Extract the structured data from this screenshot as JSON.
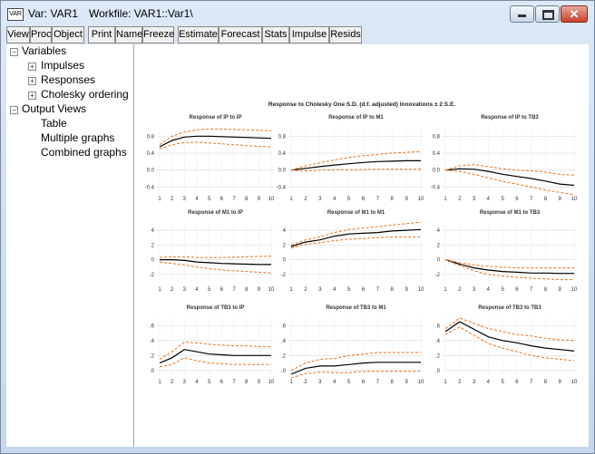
{
  "window": {
    "icon": "VAR",
    "name": "Var: VAR1",
    "workfile": "Workfile: VAR1::Var1\\"
  },
  "toolbar": [
    "View",
    "Proc",
    "Object",
    "Print",
    "Name",
    "Freeze",
    "Estimate",
    "Forecast",
    "Stats",
    "Impulse",
    "Resids"
  ],
  "tree": [
    {
      "label": "Variables",
      "children": [
        "Impulses",
        "Responses",
        "Cholesky ordering"
      ]
    },
    {
      "label": "Output Views",
      "children": [
        "Table",
        "Multiple graphs",
        "Combined graphs"
      ]
    }
  ],
  "figure_title": "Response to Cholesky One S.D. (d.f. adjusted) Innovations ± 2 S.E.",
  "chart_data": [
    {
      "type": "line",
      "title": "Response of IP to IP",
      "categories": [
        1,
        2,
        3,
        4,
        5,
        6,
        7,
        8,
        9,
        10
      ],
      "ylim": [
        -0.5,
        1.0
      ],
      "yticks": [
        -0.4,
        {
          "value": 0,
          "label": "0.0"
        },
        0.4,
        0.8
      ],
      "grid": true,
      "series": [
        {
          "color": "#000000",
          "line_style": "solid",
          "values": [
            0.55,
            0.7,
            0.78,
            0.8,
            0.8,
            0.79,
            0.78,
            0.77,
            0.76,
            0.75
          ]
        },
        {
          "color": "#e8731e",
          "line_style": "dashed",
          "values": [
            0.6,
            0.8,
            0.9,
            0.95,
            0.97,
            0.97,
            0.96,
            0.95,
            0.94,
            0.93
          ]
        },
        {
          "color": "#e8731e",
          "line_style": "dashed",
          "values": [
            0.5,
            0.6,
            0.65,
            0.66,
            0.64,
            0.62,
            0.6,
            0.58,
            0.56,
            0.55
          ]
        }
      ]
    },
    {
      "type": "line",
      "title": "Response of IP to M1",
      "categories": [
        1,
        2,
        3,
        4,
        5,
        6,
        7,
        8,
        9,
        10
      ],
      "ylim": [
        -0.5,
        1.0
      ],
      "yticks": [
        -0.4,
        {
          "value": 0,
          "label": "0.0"
        },
        0.4,
        0.8
      ],
      "grid": true,
      "series": [
        {
          "color": "#000000",
          "line_style": "solid",
          "values": [
            0,
            0.04,
            0.08,
            0.12,
            0.15,
            0.18,
            0.2,
            0.21,
            0.22,
            0.22
          ]
        },
        {
          "color": "#e8731e",
          "line_style": "dashed",
          "values": [
            0,
            0.1,
            0.17,
            0.24,
            0.3,
            0.34,
            0.37,
            0.4,
            0.42,
            0.44
          ]
        },
        {
          "color": "#e8731e",
          "line_style": "dashed",
          "values": [
            0,
            -0.02,
            0,
            0.01,
            0.01,
            0.01,
            0.02,
            0.02,
            0.02,
            0.02
          ]
        }
      ]
    },
    {
      "type": "line",
      "title": "Response of IP to TB3",
      "categories": [
        1,
        2,
        3,
        4,
        5,
        6,
        7,
        8,
        9,
        10
      ],
      "ylim": [
        -0.5,
        1.0
      ],
      "yticks": [
        -0.4,
        {
          "value": 0,
          "label": "0.0"
        },
        0.4,
        0.8
      ],
      "grid": true,
      "series": [
        {
          "color": "#000000",
          "line_style": "solid",
          "values": [
            0,
            0.03,
            0.02,
            -0.03,
            -0.1,
            -0.15,
            -0.2,
            -0.26,
            -0.33,
            -0.36
          ]
        },
        {
          "color": "#e8731e",
          "line_style": "dashed",
          "values": [
            0,
            0.1,
            0.13,
            0.08,
            0.03,
            0,
            -0.02,
            -0.05,
            -0.1,
            -0.12
          ]
        },
        {
          "color": "#e8731e",
          "line_style": "dashed",
          "values": [
            0,
            -0.03,
            -0.1,
            -0.18,
            -0.27,
            -0.33,
            -0.4,
            -0.47,
            -0.53,
            -0.58
          ]
        }
      ]
    },
    {
      "type": "line",
      "title": "Response of M1 to IP",
      "categories": [
        1,
        2,
        3,
        4,
        5,
        6,
        7,
        8,
        9,
        10
      ],
      "ylim": [
        -3,
        5
      ],
      "yticks": [
        -2,
        0,
        2,
        4
      ],
      "grid": true,
      "series": [
        {
          "color": "#000000",
          "line_style": "solid",
          "values": [
            0,
            0,
            -0.1,
            -0.3,
            -0.4,
            -0.5,
            -0.55,
            -0.6,
            -0.65,
            -0.65
          ]
        },
        {
          "color": "#e8731e",
          "line_style": "dashed",
          "values": [
            0.3,
            0.4,
            0.4,
            0.3,
            0.3,
            0.3,
            0.35,
            0.4,
            0.45,
            0.5
          ]
        },
        {
          "color": "#e8731e",
          "line_style": "dashed",
          "values": [
            -0.3,
            -0.5,
            -0.7,
            -1,
            -1.2,
            -1.4,
            -1.5,
            -1.6,
            -1.7,
            -1.8
          ]
        }
      ]
    },
    {
      "type": "line",
      "title": "Response of M1 to M1",
      "categories": [
        1,
        2,
        3,
        4,
        5,
        6,
        7,
        8,
        9,
        10
      ],
      "ylim": [
        -3,
        5
      ],
      "yticks": [
        -2,
        0,
        2,
        4
      ],
      "grid": true,
      "series": [
        {
          "color": "#000000",
          "line_style": "solid",
          "values": [
            1.8,
            2.4,
            2.7,
            3.2,
            3.5,
            3.6,
            3.7,
            3.9,
            4,
            4.1
          ]
        },
        {
          "color": "#e8731e",
          "line_style": "dashed",
          "values": [
            2,
            2.7,
            3.1,
            3.7,
            4.1,
            4.3,
            4.5,
            4.7,
            4.9,
            5.1
          ]
        },
        {
          "color": "#e8731e",
          "line_style": "dashed",
          "values": [
            1.6,
            2.1,
            2.3,
            2.6,
            2.8,
            2.9,
            3,
            3.1,
            3.1,
            3.1
          ]
        }
      ]
    },
    {
      "type": "line",
      "title": "Response of M1 to TB3",
      "categories": [
        1,
        2,
        3,
        4,
        5,
        6,
        7,
        8,
        9,
        10
      ],
      "ylim": [
        -3,
        5
      ],
      "yticks": [
        -2,
        0,
        2,
        4
      ],
      "grid": true,
      "series": [
        {
          "color": "#000000",
          "line_style": "solid",
          "values": [
            0,
            -0.6,
            -1.1,
            -1.4,
            -1.6,
            -1.7,
            -1.8,
            -1.8,
            -1.85,
            -1.85
          ]
        },
        {
          "color": "#e8731e",
          "line_style": "dashed",
          "values": [
            0,
            -0.4,
            -0.7,
            -0.9,
            -1,
            -1.1,
            -1.1,
            -1.1,
            -1.1,
            -1.1
          ]
        },
        {
          "color": "#e8731e",
          "line_style": "dashed",
          "values": [
            0,
            -0.8,
            -1.5,
            -2,
            -2.2,
            -2.4,
            -2.5,
            -2.6,
            -2.7,
            -2.7
          ]
        }
      ]
    },
    {
      "type": "line",
      "title": "Response of TB3 to IP",
      "categories": [
        1,
        2,
        3,
        4,
        5,
        6,
        7,
        8,
        9,
        10
      ],
      "ylim": [
        -0.05,
        0.7
      ],
      "yticks": [
        {
          "value": 0,
          "label": ".0"
        },
        {
          "value": 0.2,
          "label": ".2"
        },
        {
          "value": 0.4,
          "label": ".4"
        },
        {
          "value": 0.6,
          "label": ".6"
        }
      ],
      "grid": true,
      "series": [
        {
          "color": "#000000",
          "line_style": "solid",
          "values": [
            0.1,
            0.17,
            0.28,
            0.25,
            0.22,
            0.21,
            0.2,
            0.2,
            0.2,
            0.2
          ]
        },
        {
          "color": "#e8731e",
          "line_style": "dashed",
          "values": [
            0.15,
            0.25,
            0.38,
            0.37,
            0.35,
            0.34,
            0.33,
            0.33,
            0.32,
            0.32
          ]
        },
        {
          "color": "#e8731e",
          "line_style": "dashed",
          "values": [
            0.05,
            0.08,
            0.17,
            0.13,
            0.1,
            0.09,
            0.08,
            0.08,
            0.08,
            0.08
          ]
        }
      ]
    },
    {
      "type": "line",
      "title": "Response of TB3 to M1",
      "categories": [
        1,
        2,
        3,
        4,
        5,
        6,
        7,
        8,
        9,
        10
      ],
      "ylim": [
        -0.05,
        0.7
      ],
      "yticks": [
        {
          "value": 0,
          "label": ".0"
        },
        {
          "value": 0.2,
          "label": ".2"
        },
        {
          "value": 0.4,
          "label": ".4"
        },
        {
          "value": 0.6,
          "label": ".6"
        }
      ],
      "grid": true,
      "series": [
        {
          "color": "#000000",
          "line_style": "solid",
          "values": [
            -0.05,
            0.03,
            0.06,
            0.06,
            0.08,
            0.1,
            0.11,
            0.11,
            0.11,
            0.11
          ]
        },
        {
          "color": "#e8731e",
          "line_style": "dashed",
          "values": [
            0,
            0.1,
            0.15,
            0.16,
            0.2,
            0.22,
            0.24,
            0.24,
            0.24,
            0.24
          ]
        },
        {
          "color": "#e8731e",
          "line_style": "dashed",
          "values": [
            -0.1,
            -0.04,
            -0.02,
            -0.03,
            -0.03,
            -0.01,
            -0.01,
            -0.01,
            -0.01,
            -0.01
          ]
        }
      ]
    },
    {
      "type": "line",
      "title": "Response of TB3 to TB3",
      "categories": [
        1,
        2,
        3,
        4,
        5,
        6,
        7,
        8,
        9,
        10
      ],
      "ylim": [
        -0.05,
        0.7
      ],
      "yticks": [
        {
          "value": 0,
          "label": ".0"
        },
        {
          "value": 0.2,
          "label": ".2"
        },
        {
          "value": 0.4,
          "label": ".4"
        },
        {
          "value": 0.6,
          "label": ".6"
        }
      ],
      "grid": true,
      "series": [
        {
          "color": "#000000",
          "line_style": "solid",
          "values": [
            0.52,
            0.65,
            0.55,
            0.45,
            0.4,
            0.37,
            0.33,
            0.3,
            0.28,
            0.26
          ]
        },
        {
          "color": "#e8731e",
          "line_style": "dashed",
          "values": [
            0.56,
            0.7,
            0.63,
            0.56,
            0.52,
            0.48,
            0.46,
            0.43,
            0.41,
            0.4
          ]
        },
        {
          "color": "#e8731e",
          "line_style": "dashed",
          "values": [
            0.48,
            0.58,
            0.47,
            0.36,
            0.3,
            0.25,
            0.2,
            0.17,
            0.15,
            0.13
          ]
        }
      ]
    }
  ]
}
